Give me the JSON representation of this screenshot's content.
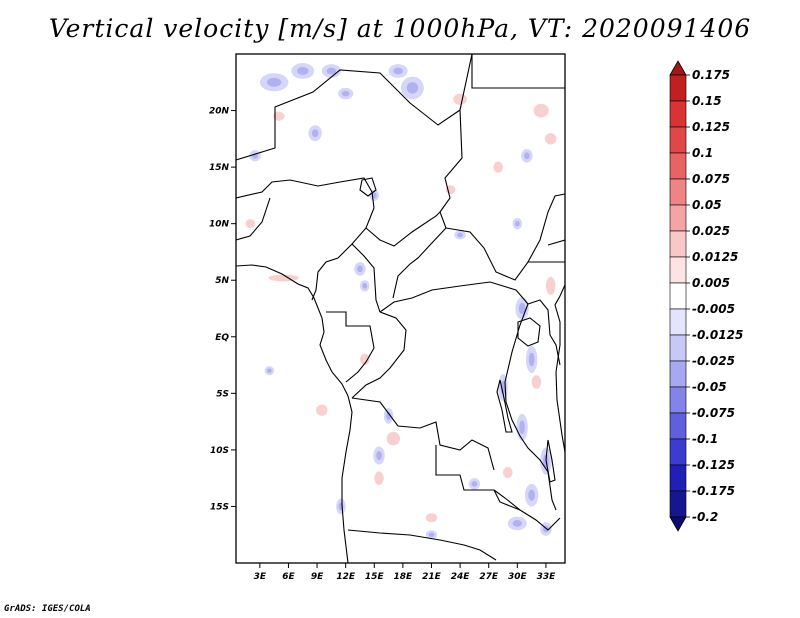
{
  "chart_data": {
    "type": "heatmap",
    "title": "Vertical velocity [m/s] at 1000hPa, VT: 2020091406",
    "field": "Vertical velocity",
    "units": "m/s",
    "level": "1000hPa",
    "valid_time": "2020091406",
    "x_axis": {
      "tick_labels": [
        "3E",
        "6E",
        "9E",
        "12E",
        "15E",
        "18E",
        "21E",
        "24E",
        "27E",
        "30E",
        "33E"
      ],
      "tick_values": [
        3,
        6,
        9,
        12,
        15,
        18,
        21,
        24,
        27,
        30,
        33
      ],
      "range": [
        0.5,
        35
      ]
    },
    "y_axis": {
      "tick_labels": [
        "20N",
        "15N",
        "10N",
        "5N",
        "EQ",
        "5S",
        "10S",
        "15S"
      ],
      "tick_values": [
        20,
        15,
        10,
        5,
        0,
        -5,
        -10,
        -15
      ],
      "range": [
        -20,
        25
      ]
    },
    "colorbar": {
      "levels": [
        "0.175",
        "0.15",
        "0.125",
        "0.1",
        "0.075",
        "0.05",
        "0.025",
        "0.0125",
        "0.005",
        "-0.005",
        "-0.0125",
        "-0.025",
        "-0.05",
        "-0.075",
        "-0.1",
        "-0.125",
        "-0.175",
        "-0.2"
      ],
      "colors": [
        "#a01818",
        "#c02020",
        "#d83434",
        "#e04848",
        "#e86464",
        "#ee8484",
        "#f4a4a4",
        "#f8c8c8",
        "#fce4e4",
        "#ffffff",
        "#e4e4fc",
        "#c8c8f8",
        "#a8a8f0",
        "#8484e8",
        "#6060dc",
        "#3c3cd0",
        "#2020b4",
        "#161690",
        "#0c0c70"
      ]
    },
    "blobs_blue": [
      [
        4.5,
        22.5,
        1.5,
        0.8
      ],
      [
        7.5,
        23.5,
        1.2,
        0.7
      ],
      [
        10.5,
        23.5,
        1.0,
        0.6
      ],
      [
        19.0,
        22.0,
        1.2,
        1.0
      ],
      [
        17.5,
        23.5,
        1.0,
        0.6
      ],
      [
        8.8,
        18.0,
        0.7,
        0.7
      ],
      [
        12.0,
        21.5,
        0.8,
        0.5
      ],
      [
        31.0,
        16.0,
        0.6,
        0.6
      ],
      [
        13.5,
        6.0,
        0.6,
        0.6
      ],
      [
        14.0,
        4.5,
        0.5,
        0.5
      ],
      [
        30.5,
        2.5,
        0.7,
        1.0
      ],
      [
        31.5,
        -2.0,
        0.6,
        1.2
      ],
      [
        28.5,
        -4.5,
        0.5,
        1.2
      ],
      [
        30.5,
        -8.0,
        0.6,
        1.2
      ],
      [
        33.0,
        -11.0,
        0.6,
        1.2
      ],
      [
        31.5,
        -14.0,
        0.7,
        1.0
      ],
      [
        30.0,
        -16.5,
        1.0,
        0.6
      ],
      [
        33.0,
        -17.0,
        0.6,
        0.6
      ],
      [
        16.5,
        -7.0,
        0.5,
        0.7
      ],
      [
        15.5,
        -10.5,
        0.6,
        0.8
      ],
      [
        11.5,
        -15.0,
        0.5,
        0.7
      ],
      [
        25.5,
        -13.0,
        0.6,
        0.5
      ],
      [
        21.0,
        -17.5,
        0.6,
        0.4
      ],
      [
        2.5,
        16.0,
        0.6,
        0.5
      ],
      [
        15.0,
        12.5,
        0.5,
        0.5
      ],
      [
        24.0,
        9.0,
        0.6,
        0.4
      ],
      [
        4.0,
        -3.0,
        0.5,
        0.4
      ],
      [
        30.0,
        10.0,
        0.5,
        0.5
      ]
    ],
    "blobs_red": [
      [
        5.0,
        19.5,
        0.6,
        0.4
      ],
      [
        24.0,
        21.0,
        0.7,
        0.5
      ],
      [
        32.5,
        20.0,
        0.8,
        0.6
      ],
      [
        33.5,
        17.5,
        0.6,
        0.5
      ],
      [
        5.5,
        5.2,
        1.6,
        0.3
      ],
      [
        14.0,
        -2.0,
        0.5,
        0.5
      ],
      [
        17.0,
        -9.0,
        0.7,
        0.6
      ],
      [
        15.5,
        -12.5,
        0.5,
        0.6
      ],
      [
        33.5,
        4.5,
        0.5,
        0.8
      ],
      [
        29.0,
        -12.0,
        0.5,
        0.5
      ],
      [
        21.0,
        -16.0,
        0.6,
        0.4
      ],
      [
        2.0,
        10.0,
        0.5,
        0.4
      ],
      [
        23.0,
        13.0,
        0.5,
        0.4
      ],
      [
        9.5,
        -6.5,
        0.6,
        0.5
      ],
      [
        32.0,
        -4.0,
        0.5,
        0.6
      ],
      [
        28.0,
        15.0,
        0.5,
        0.5
      ]
    ]
  },
  "credit": "GrADS: IGES/COLA"
}
